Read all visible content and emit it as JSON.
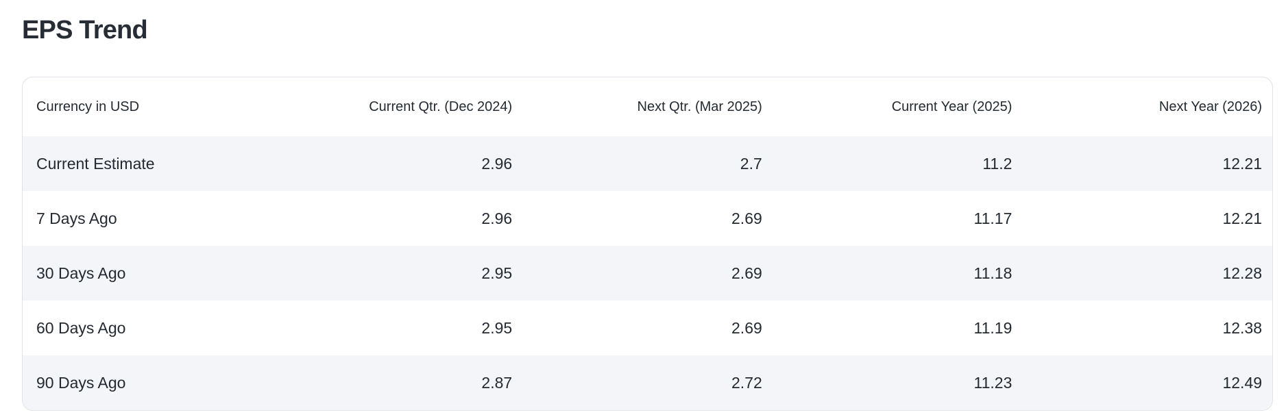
{
  "page": {
    "title": "EPS Trend"
  },
  "table": {
    "columns": [
      {
        "label": "Currency in USD",
        "align": "left"
      },
      {
        "label": "Current Qtr. (Dec 2024)",
        "align": "right"
      },
      {
        "label": "Next Qtr. (Mar 2025)",
        "align": "right"
      },
      {
        "label": "Current Year (2025)",
        "align": "right"
      },
      {
        "label": "Next Year (2026)",
        "align": "right"
      }
    ],
    "rows": [
      {
        "label": "Current Estimate",
        "values": [
          "2.96",
          "2.7",
          "11.2",
          "12.21"
        ]
      },
      {
        "label": "7 Days Ago",
        "values": [
          "2.96",
          "2.69",
          "11.17",
          "12.21"
        ]
      },
      {
        "label": "30 Days Ago",
        "values": [
          "2.95",
          "2.69",
          "11.18",
          "12.28"
        ]
      },
      {
        "label": "60 Days Ago",
        "values": [
          "2.95",
          "2.69",
          "11.19",
          "12.38"
        ]
      },
      {
        "label": "90 Days Ago",
        "values": [
          "2.87",
          "2.72",
          "11.23",
          "12.49"
        ]
      }
    ]
  },
  "colors": {
    "page_background": "#ffffff",
    "card_border": "#dfe2e7",
    "stripe_row_background": "#f4f5f8",
    "table_text": "#232a31",
    "title_text": "#262d35"
  }
}
